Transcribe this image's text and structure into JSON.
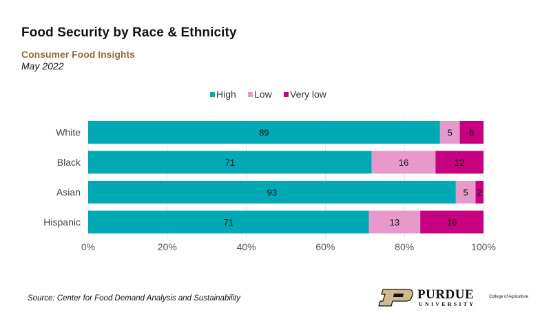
{
  "header": {
    "title": "Food Security by Race & Ethnicity",
    "subtitle": "Consumer Food Insights",
    "date": "May 2022"
  },
  "footer": {
    "source": "Source:  Center for Food Demand Analysis and Sustainability",
    "logo_word": "PURDUE",
    "logo_university": "UNIVERSITY",
    "logo_college": "College of Agriculture"
  },
  "chart_data": {
    "type": "bar",
    "orientation": "horizontal",
    "stacked": "percent",
    "title": "Food Security by Race & Ethnicity",
    "subtitle": "Consumer Food Insights",
    "xlabel": "",
    "ylabel": "",
    "categories": [
      "White",
      "Black",
      "Asian",
      "Hispanic"
    ],
    "series": [
      {
        "name": "High",
        "color": "#00a9b4",
        "values": [
          89,
          71,
          93,
          71
        ]
      },
      {
        "name": "Low",
        "color": "#e799cc",
        "values": [
          5,
          16,
          5,
          13
        ]
      },
      {
        "name": "Very low",
        "color": "#c6007e",
        "values": [
          6,
          12,
          2,
          16
        ]
      }
    ],
    "xlim": [
      0,
      100
    ],
    "xticks": [
      0,
      20,
      40,
      60,
      80,
      100
    ],
    "xtick_labels": [
      "0%",
      "20%",
      "40%",
      "60%",
      "80%",
      "100%"
    ],
    "grid": "vertical",
    "legend": "top-center",
    "data_labels": true
  }
}
